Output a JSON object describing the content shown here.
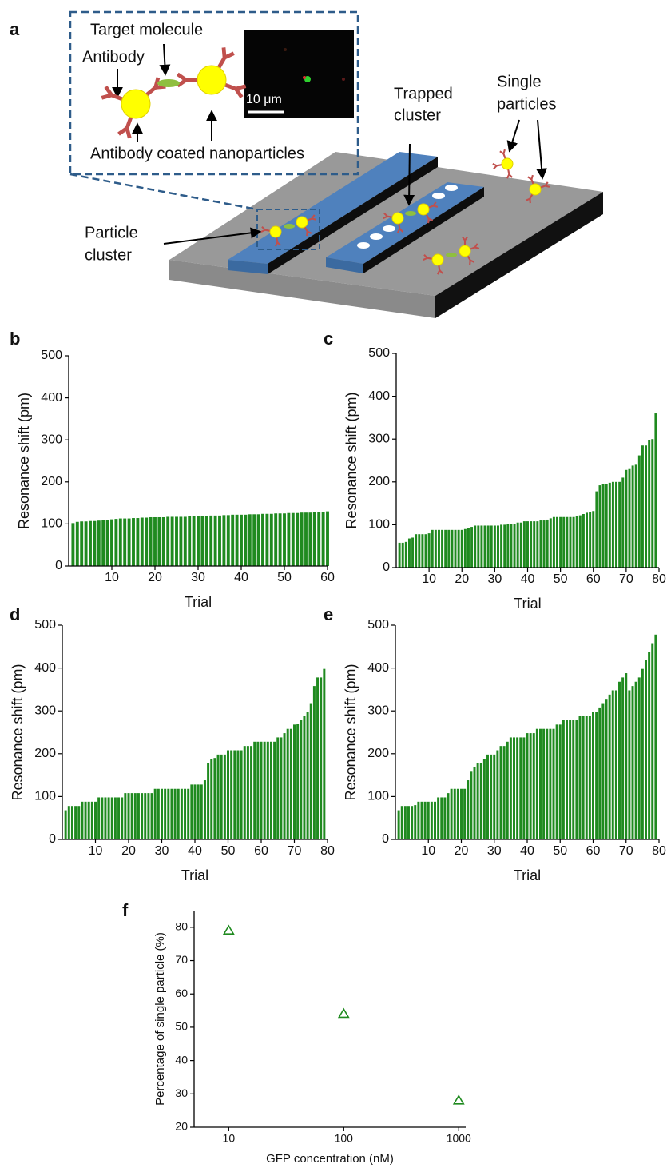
{
  "diagram": {
    "panel_label": "a",
    "target_molecule": "Target molecule",
    "antibody": "Antibody",
    "coated_nanoparticles": "Antibody coated nanoparticles",
    "scale_bar": "10 μm",
    "trapped_cluster": [
      "Trapped",
      "cluster"
    ],
    "single_particles": [
      "Single",
      "particles"
    ],
    "particle_cluster": [
      "Particle",
      "cluster"
    ]
  },
  "chart_data": [
    {
      "type": "bar",
      "panel_label": "b",
      "x_label": "Trial",
      "y_label": "Resonance shift (pm)",
      "color": "#1f8a1f",
      "x": [
        1,
        2,
        3,
        4,
        5,
        6,
        7,
        8,
        9,
        10,
        11,
        12,
        13,
        14,
        15,
        16,
        17,
        18,
        19,
        20,
        21,
        22,
        23,
        24,
        25,
        26,
        27,
        28,
        29,
        30,
        31,
        32,
        33,
        34,
        35,
        36,
        37,
        38,
        39,
        40,
        41,
        42,
        43,
        44,
        45,
        46,
        47,
        48,
        49,
        50,
        51,
        52,
        53,
        54,
        55,
        56,
        57,
        58,
        59,
        60
      ],
      "values": [
        102,
        105,
        106,
        106,
        107,
        107,
        108,
        109,
        110,
        111,
        112,
        113,
        113,
        113,
        114,
        114,
        115,
        115,
        116,
        116,
        116,
        116,
        117,
        117,
        117,
        117,
        117,
        118,
        118,
        118,
        119,
        119,
        120,
        120,
        120,
        121,
        121,
        122,
        122,
        122,
        122,
        123,
        123,
        123,
        124,
        124,
        124,
        125,
        125,
        125,
        126,
        126,
        126,
        127,
        127,
        127,
        128,
        128,
        129,
        130
      ],
      "xlim": [
        0,
        60
      ],
      "xticks": [
        10,
        20,
        30,
        40,
        50,
        60
      ],
      "ylim": [
        0,
        500
      ],
      "yticks": [
        0,
        100,
        200,
        300,
        400,
        500
      ]
    },
    {
      "type": "bar",
      "panel_label": "c",
      "x_label": "Trial",
      "y_label": "Resonance shift (pm)",
      "color": "#1f8a1f",
      "x": [
        1,
        2,
        3,
        4,
        5,
        6,
        7,
        8,
        9,
        10,
        11,
        12,
        13,
        14,
        15,
        16,
        17,
        18,
        19,
        20,
        21,
        22,
        23,
        24,
        25,
        26,
        27,
        28,
        29,
        30,
        31,
        32,
        33,
        34,
        35,
        36,
        37,
        38,
        39,
        40,
        41,
        42,
        43,
        44,
        45,
        46,
        47,
        48,
        49,
        50,
        51,
        52,
        53,
        54,
        55,
        56,
        57,
        58,
        59,
        60,
        61,
        62,
        63,
        64,
        65,
        66,
        67,
        68,
        69,
        70,
        71,
        72,
        73,
        74,
        75,
        76,
        77,
        78,
        79
      ],
      "values": [
        58,
        58,
        60,
        68,
        70,
        78,
        78,
        78,
        78,
        80,
        88,
        88,
        88,
        88,
        88,
        88,
        88,
        88,
        88,
        88,
        90,
        92,
        95,
        98,
        98,
        98,
        98,
        98,
        98,
        98,
        98,
        100,
        100,
        102,
        102,
        102,
        105,
        105,
        108,
        108,
        108,
        108,
        108,
        110,
        110,
        112,
        115,
        118,
        118,
        118,
        118,
        118,
        118,
        118,
        120,
        122,
        125,
        128,
        130,
        132,
        178,
        192,
        195,
        195,
        198,
        200,
        200,
        200,
        210,
        228,
        230,
        238,
        240,
        262,
        285,
        285,
        298,
        300,
        360
      ],
      "xlim": [
        0,
        80
      ],
      "xticks": [
        10,
        20,
        30,
        40,
        50,
        60,
        70,
        80
      ],
      "ylim": [
        0,
        500
      ],
      "yticks": [
        0,
        100,
        200,
        300,
        400,
        500
      ]
    },
    {
      "type": "bar",
      "panel_label": "d",
      "x_label": "Trial",
      "y_label": "Resonance shift (pm)",
      "color": "#1f8a1f",
      "x": [
        1,
        2,
        3,
        4,
        5,
        6,
        7,
        8,
        9,
        10,
        11,
        12,
        13,
        14,
        15,
        16,
        17,
        18,
        19,
        20,
        21,
        22,
        23,
        24,
        25,
        26,
        27,
        28,
        29,
        30,
        31,
        32,
        33,
        34,
        35,
        36,
        37,
        38,
        39,
        40,
        41,
        42,
        43,
        44,
        45,
        46,
        47,
        48,
        49,
        50,
        51,
        52,
        53,
        54,
        55,
        56,
        57,
        58,
        59,
        60,
        61,
        62,
        63,
        64,
        65,
        66,
        67,
        68,
        69,
        70,
        71,
        72,
        73,
        74,
        75,
        76,
        77,
        78,
        79
      ],
      "values": [
        68,
        78,
        78,
        78,
        78,
        88,
        88,
        88,
        88,
        88,
        98,
        98,
        98,
        98,
        98,
        98,
        98,
        98,
        108,
        108,
        108,
        108,
        108,
        108,
        108,
        108,
        108,
        118,
        118,
        118,
        118,
        118,
        118,
        118,
        118,
        118,
        118,
        118,
        128,
        128,
        128,
        128,
        138,
        178,
        188,
        190,
        198,
        198,
        198,
        208,
        208,
        208,
        208,
        208,
        218,
        218,
        218,
        228,
        228,
        228,
        228,
        228,
        228,
        228,
        238,
        238,
        248,
        258,
        258,
        268,
        270,
        278,
        288,
        298,
        318,
        358,
        378,
        378,
        398
      ],
      "xlim": [
        0,
        80
      ],
      "xticks": [
        10,
        20,
        30,
        40,
        50,
        60,
        70,
        80
      ],
      "ylim": [
        0,
        500
      ],
      "yticks": [
        0,
        100,
        200,
        300,
        400,
        500
      ]
    },
    {
      "type": "bar",
      "panel_label": "e",
      "x_label": "Trial",
      "y_label": "Resonance shift (pm)",
      "color": "#1f8a1f",
      "x": [
        1,
        2,
        3,
        4,
        5,
        6,
        7,
        8,
        9,
        10,
        11,
        12,
        13,
        14,
        15,
        16,
        17,
        18,
        19,
        20,
        21,
        22,
        23,
        24,
        25,
        26,
        27,
        28,
        29,
        30,
        31,
        32,
        33,
        34,
        35,
        36,
        37,
        38,
        39,
        40,
        41,
        42,
        43,
        44,
        45,
        46,
        47,
        48,
        49,
        50,
        51,
        52,
        53,
        54,
        55,
        56,
        57,
        58,
        59,
        60,
        61,
        62,
        63,
        64,
        65,
        66,
        67,
        68,
        69,
        70,
        71,
        72,
        73,
        74,
        75,
        76,
        77,
        78,
        79
      ],
      "values": [
        68,
        78,
        78,
        78,
        78,
        80,
        88,
        88,
        88,
        88,
        88,
        88,
        98,
        98,
        98,
        108,
        118,
        118,
        118,
        118,
        118,
        138,
        158,
        168,
        178,
        178,
        188,
        198,
        198,
        198,
        208,
        218,
        218,
        228,
        238,
        238,
        238,
        238,
        238,
        248,
        248,
        248,
        258,
        258,
        258,
        258,
        258,
        258,
        268,
        268,
        278,
        278,
        278,
        278,
        278,
        288,
        288,
        288,
        288,
        298,
        298,
        308,
        318,
        328,
        338,
        348,
        348,
        368,
        378,
        388,
        348,
        358,
        368,
        378,
        398,
        418,
        438,
        458,
        478
      ],
      "xlim": [
        0,
        80
      ],
      "xticks": [
        10,
        20,
        30,
        40,
        50,
        60,
        70,
        80
      ],
      "ylim": [
        0,
        500
      ],
      "yticks": [
        0,
        100,
        200,
        300,
        400,
        500
      ]
    },
    {
      "type": "scatter",
      "panel_label": "f",
      "x_label": "GFP concentration (nM)",
      "y_label": "Percentage of single particle (%)",
      "color": "#1f8a1f",
      "marker": "triangle",
      "xscale": "log",
      "x": [
        10,
        100,
        1000
      ],
      "values": [
        79,
        54,
        28
      ],
      "xlim": [
        5,
        1150
      ],
      "xticks": [
        10,
        100,
        1000
      ],
      "ylim": [
        20,
        85
      ],
      "yticks": [
        20,
        30,
        40,
        50,
        60,
        70,
        80
      ]
    }
  ]
}
